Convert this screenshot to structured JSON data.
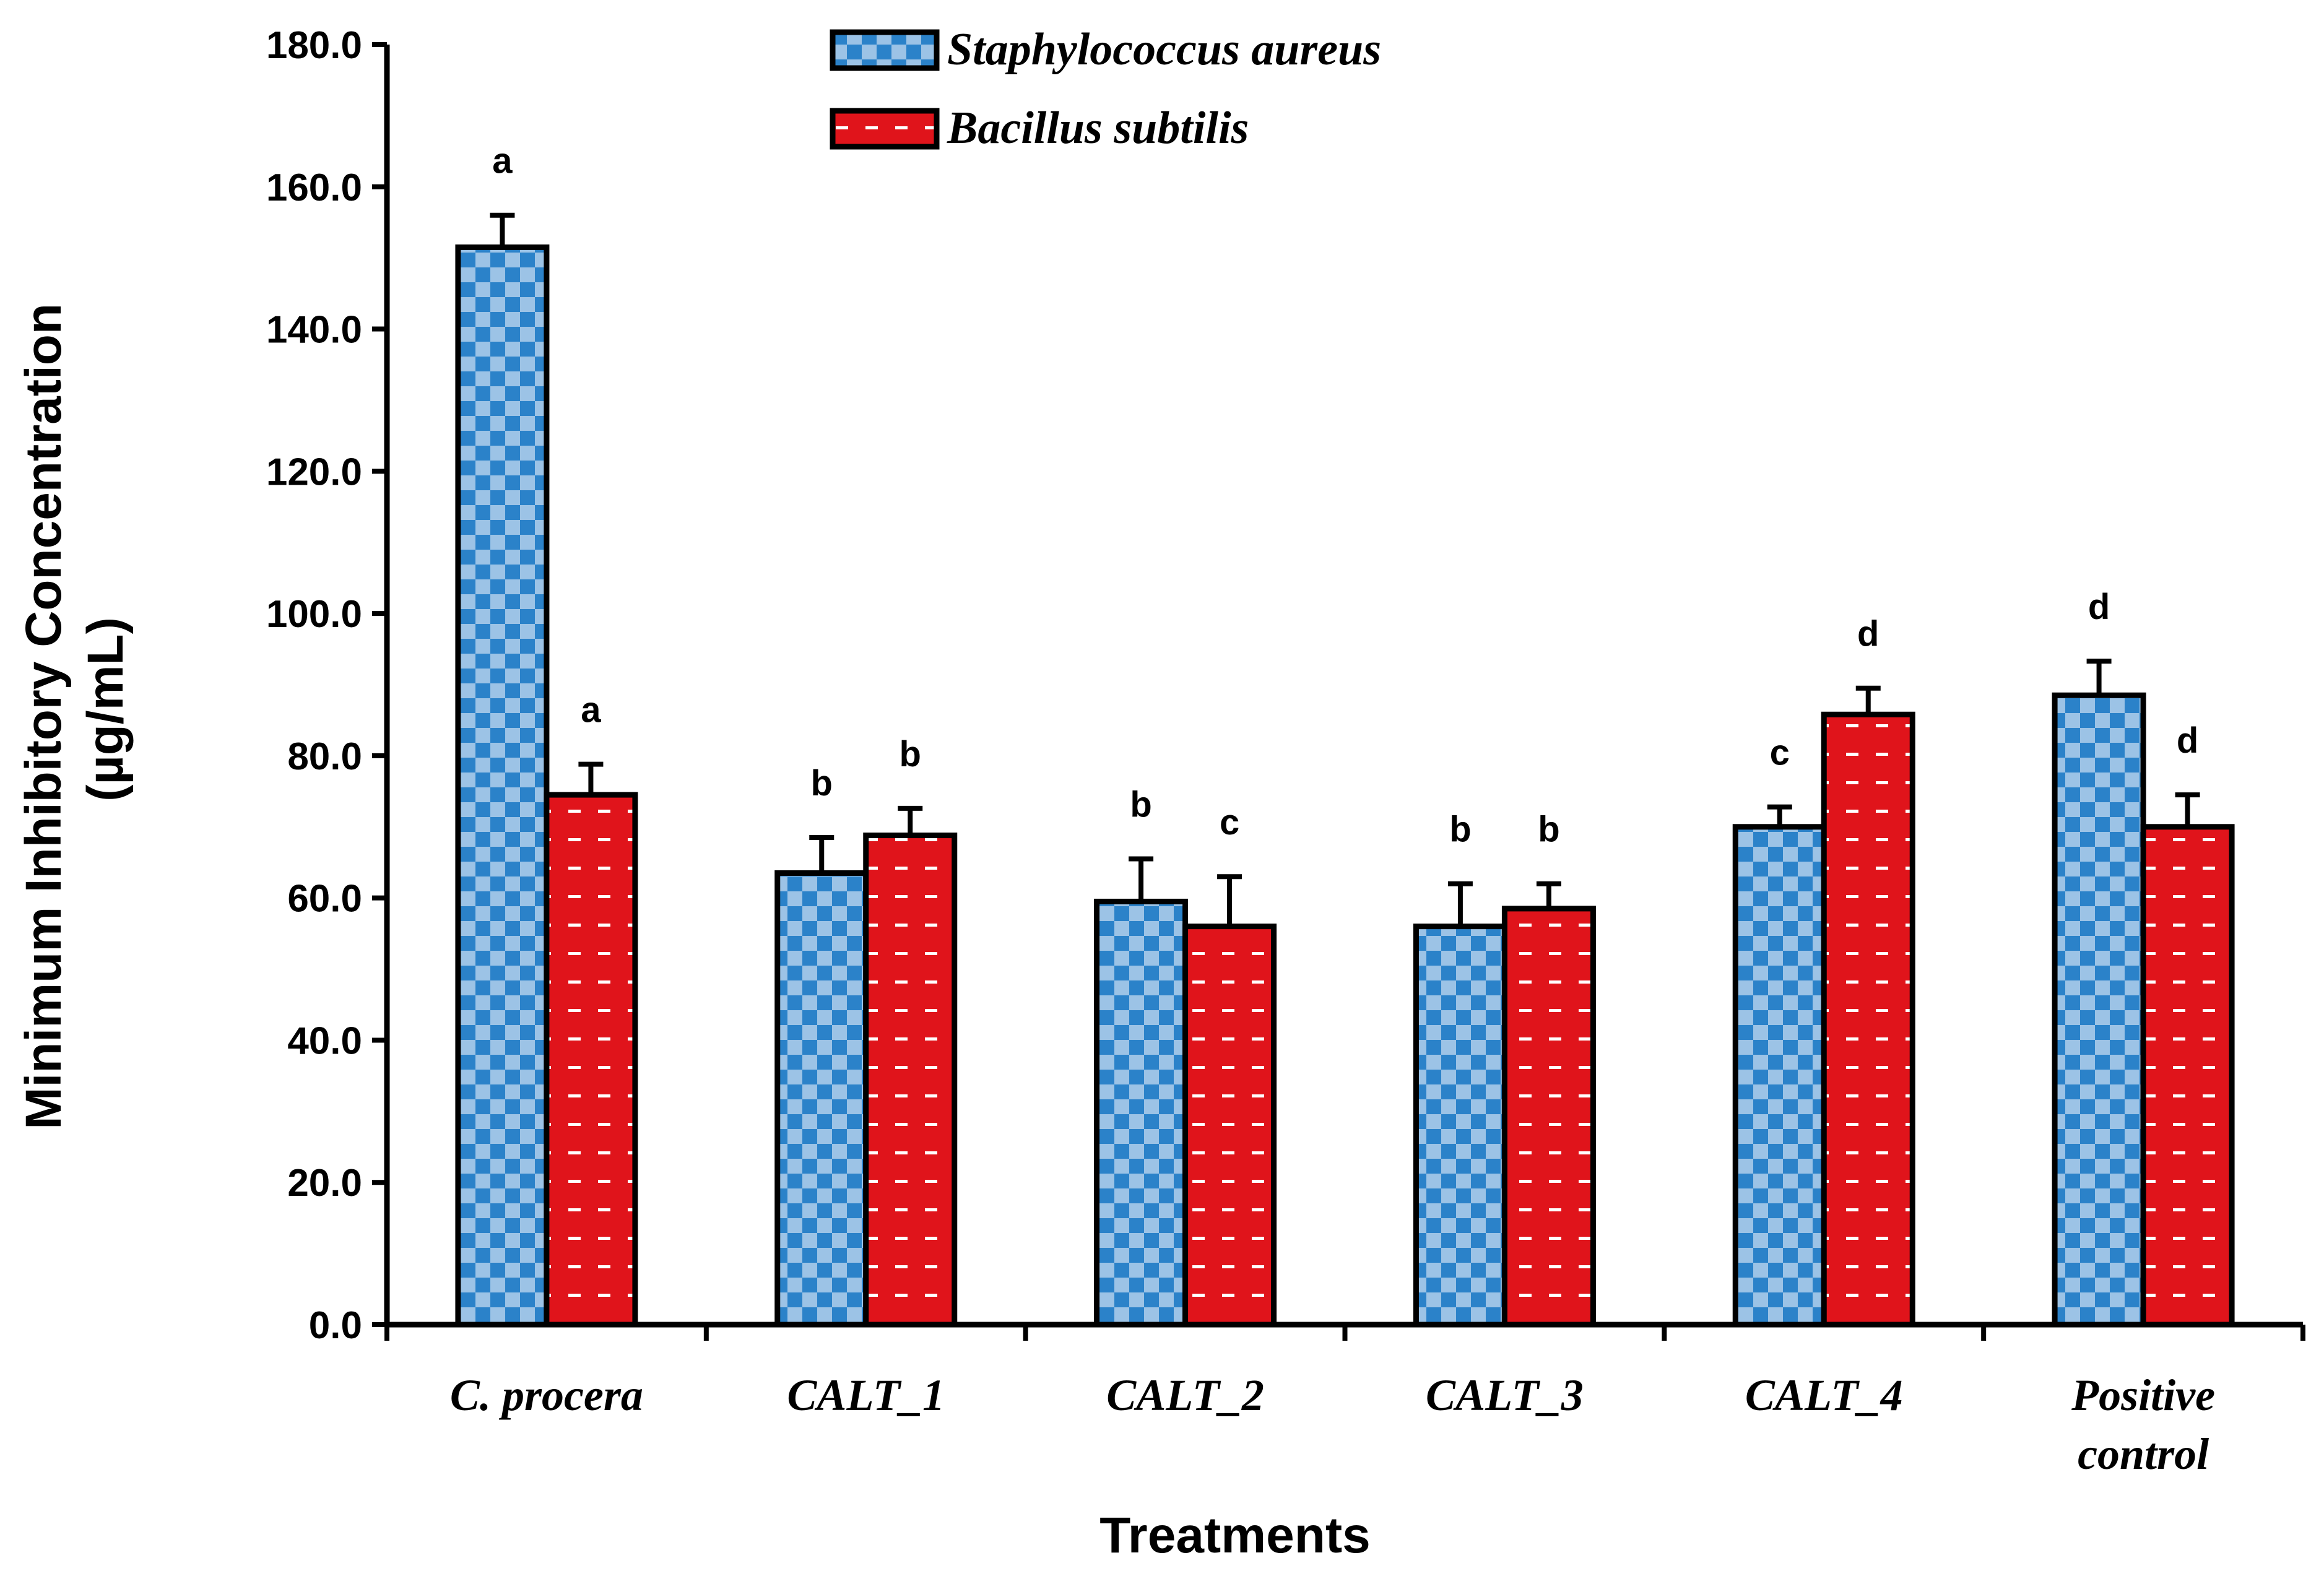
{
  "chart_data": {
    "type": "bar",
    "title": "",
    "xlabel": "Treatments",
    "ylabel_lines": [
      "Minimum Inhibitory Concentration",
      "(µg/mL)"
    ],
    "ylim": [
      0,
      180
    ],
    "ytick_step": 20,
    "ytick_labels": [
      "0.0",
      "20.0",
      "40.0",
      "60.0",
      "80.0",
      "100.0",
      "120.0",
      "140.0",
      "160.0",
      "180.0"
    ],
    "categories": [
      [
        "C. procera"
      ],
      [
        "CALT_1"
      ],
      [
        "CALT_2"
      ],
      [
        "CALT_3"
      ],
      [
        "CALT_4"
      ],
      [
        "Positive",
        "control"
      ]
    ],
    "series": [
      {
        "name": "Staphylococcus aureus",
        "color": "#2b82c9",
        "pattern": "checker",
        "values": [
          151.5,
          63.5,
          59.5,
          56.0,
          70.0,
          88.5
        ],
        "errors": [
          4.5,
          5.0,
          6.0,
          6.0,
          2.8,
          4.8
        ],
        "letters": [
          "a",
          "b",
          "b",
          "b",
          "c",
          "d"
        ]
      },
      {
        "name": "Bacillus subtilis",
        "color": "#e0141b",
        "pattern": "dashes",
        "values": [
          74.5,
          68.8,
          56.0,
          58.5,
          85.8,
          70.0
        ],
        "errors": [
          4.3,
          3.8,
          7.0,
          3.5,
          3.7,
          4.5
        ],
        "letters": [
          "a",
          "b",
          "c",
          "b",
          "d",
          "d"
        ]
      }
    ],
    "legend_position": "top-center"
  }
}
